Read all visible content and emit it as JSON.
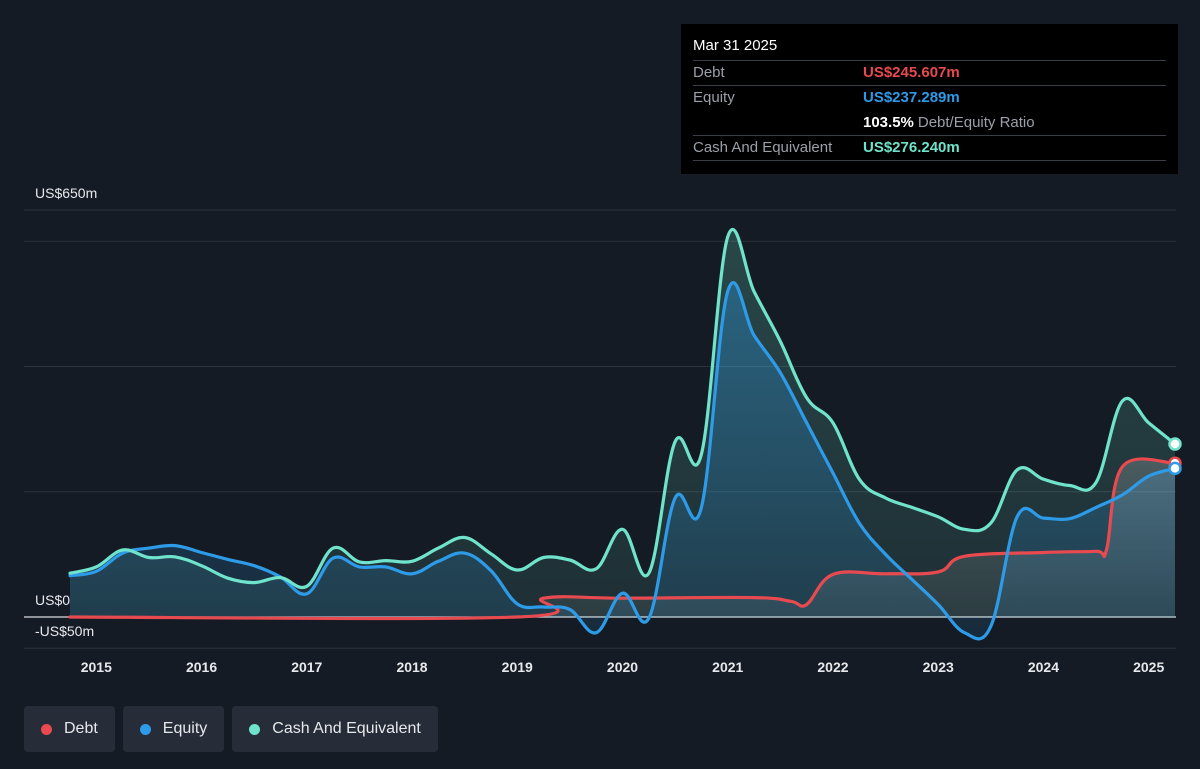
{
  "tooltip": {
    "date": "Mar 31 2025",
    "debt_label": "Debt",
    "debt_value": "US$245.607m",
    "equity_label": "Equity",
    "equity_value": "US$237.289m",
    "ratio_value": "103.5%",
    "ratio_label": "Debt/Equity Ratio",
    "cash_label": "Cash And Equivalent",
    "cash_value": "US$276.240m"
  },
  "colors": {
    "debt": "#e84a4f",
    "equity": "#2e9be8",
    "cash": "#6fe3cb",
    "background": "#151b24"
  },
  "legend": [
    {
      "label": "Debt",
      "color": "#e84a4f"
    },
    {
      "label": "Equity",
      "color": "#2e9be8"
    },
    {
      "label": "Cash And Equivalent",
      "color": "#6fe3cb"
    }
  ],
  "chart_data": {
    "type": "area",
    "y_tick_labels": {
      "top": "US$650m",
      "zero": "US$0",
      "bottom": "-US$50m"
    },
    "ylim": [
      -50,
      650
    ],
    "xlim": [
      2014.75,
      2025.25
    ],
    "x_ticks": [
      "2015",
      "2016",
      "2017",
      "2018",
      "2019",
      "2020",
      "2021",
      "2022",
      "2023",
      "2024",
      "2025"
    ],
    "grid": true,
    "series": [
      {
        "name": "Debt",
        "points": [
          [
            2014.75,
            0
          ],
          [
            2019.0,
            0
          ],
          [
            2019.25,
            30
          ],
          [
            2020.0,
            30
          ],
          [
            2021.25,
            31
          ],
          [
            2021.6,
            25
          ],
          [
            2021.75,
            20
          ],
          [
            2022.0,
            68
          ],
          [
            2022.5,
            69
          ],
          [
            2023.0,
            72
          ],
          [
            2023.25,
            97
          ],
          [
            2024.0,
            103
          ],
          [
            2024.5,
            105
          ],
          [
            2024.6,
            108
          ],
          [
            2024.75,
            240
          ],
          [
            2025.25,
            245.6
          ]
        ]
      },
      {
        "name": "Equity",
        "points": [
          [
            2014.75,
            66
          ],
          [
            2015.0,
            73
          ],
          [
            2015.25,
            102
          ],
          [
            2015.5,
            110
          ],
          [
            2015.75,
            114
          ],
          [
            2016.0,
            103
          ],
          [
            2016.25,
            92
          ],
          [
            2016.5,
            82
          ],
          [
            2016.75,
            64
          ],
          [
            2017.0,
            37
          ],
          [
            2017.25,
            94
          ],
          [
            2017.5,
            80
          ],
          [
            2017.75,
            80
          ],
          [
            2018.0,
            69
          ],
          [
            2018.25,
            89
          ],
          [
            2018.5,
            102
          ],
          [
            2018.75,
            74
          ],
          [
            2019.0,
            21
          ],
          [
            2019.25,
            16
          ],
          [
            2019.5,
            12
          ],
          [
            2019.75,
            -25
          ],
          [
            2020.0,
            38
          ],
          [
            2020.25,
            -2
          ],
          [
            2020.5,
            190
          ],
          [
            2020.75,
            175
          ],
          [
            2021.0,
            520
          ],
          [
            2021.25,
            450
          ],
          [
            2021.5,
            390
          ],
          [
            2021.75,
            310
          ],
          [
            2022.0,
            230
          ],
          [
            2022.25,
            150
          ],
          [
            2022.5,
            100
          ],
          [
            2022.75,
            60
          ],
          [
            2023.0,
            20
          ],
          [
            2023.25,
            -25
          ],
          [
            2023.5,
            -15
          ],
          [
            2023.75,
            160
          ],
          [
            2024.0,
            158
          ],
          [
            2024.25,
            157
          ],
          [
            2024.5,
            175
          ],
          [
            2024.75,
            195
          ],
          [
            2025.0,
            225
          ],
          [
            2025.25,
            237.3
          ]
        ]
      },
      {
        "name": "Cash And Equivalent",
        "points": [
          [
            2014.75,
            70
          ],
          [
            2015.0,
            80
          ],
          [
            2015.25,
            107
          ],
          [
            2015.5,
            95
          ],
          [
            2015.75,
            96
          ],
          [
            2016.0,
            82
          ],
          [
            2016.25,
            62
          ],
          [
            2016.5,
            55
          ],
          [
            2016.75,
            63
          ],
          [
            2017.0,
            49
          ],
          [
            2017.25,
            110
          ],
          [
            2017.5,
            88
          ],
          [
            2017.75,
            90
          ],
          [
            2018.0,
            89
          ],
          [
            2018.25,
            110
          ],
          [
            2018.5,
            127
          ],
          [
            2018.75,
            101
          ],
          [
            2019.0,
            75
          ],
          [
            2019.25,
            95
          ],
          [
            2019.5,
            91
          ],
          [
            2019.75,
            77
          ],
          [
            2020.0,
            140
          ],
          [
            2020.25,
            70
          ],
          [
            2020.5,
            280
          ],
          [
            2020.75,
            260
          ],
          [
            2021.0,
            607
          ],
          [
            2021.25,
            520
          ],
          [
            2021.5,
            440
          ],
          [
            2021.75,
            350
          ],
          [
            2022.0,
            310
          ],
          [
            2022.25,
            220
          ],
          [
            2022.5,
            190
          ],
          [
            2022.75,
            175
          ],
          [
            2023.0,
            160
          ],
          [
            2023.25,
            140
          ],
          [
            2023.5,
            150
          ],
          [
            2023.75,
            235
          ],
          [
            2024.0,
            220
          ],
          [
            2024.25,
            210
          ],
          [
            2024.5,
            215
          ],
          [
            2024.75,
            345
          ],
          [
            2025.0,
            310
          ],
          [
            2025.25,
            276.2
          ]
        ]
      }
    ]
  }
}
